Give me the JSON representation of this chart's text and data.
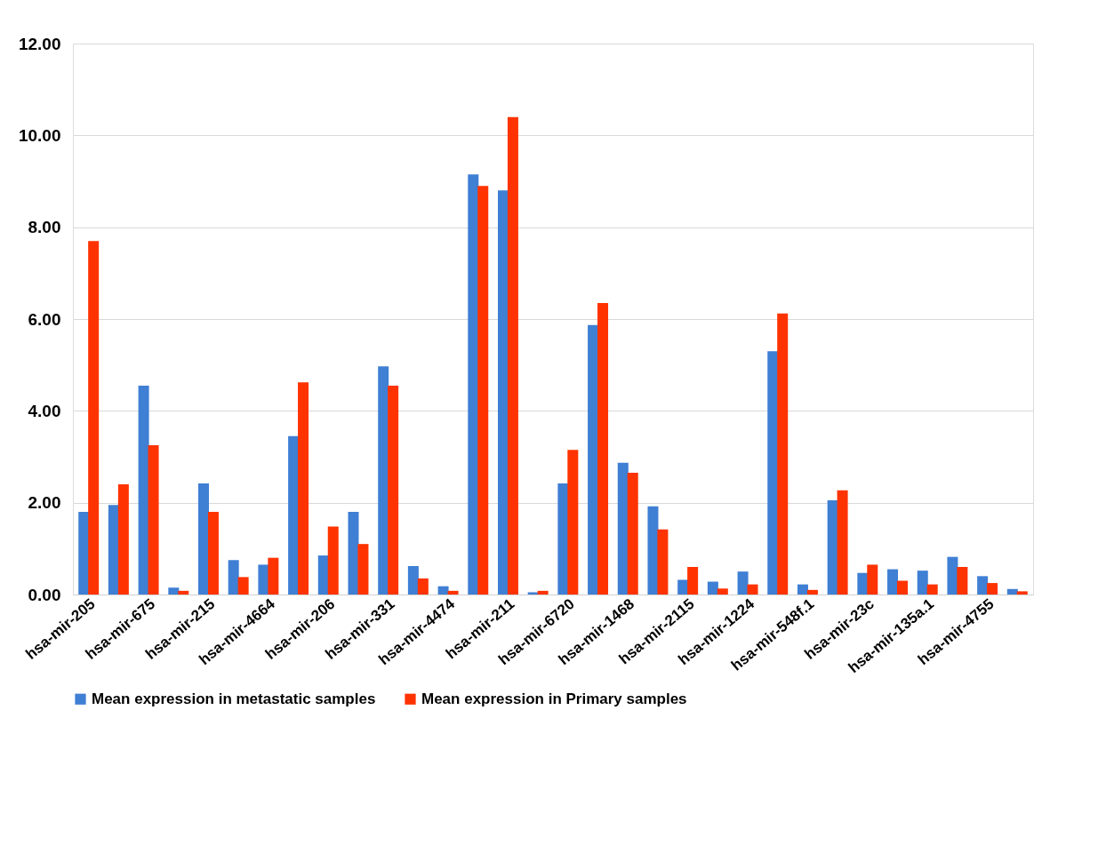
{
  "chart_data": {
    "type": "bar",
    "categories": [
      "hsa-mir-205",
      null,
      "hsa-mir-675",
      null,
      "hsa-mir-215",
      null,
      "hsa-mir-4664",
      null,
      "hsa-mir-206",
      null,
      "hsa-mir-331",
      null,
      "hsa-mir-4474",
      null,
      "hsa-mir-211",
      null,
      "hsa-mir-6720",
      null,
      "hsa-mir-1468",
      null,
      "hsa-mir-2115",
      null,
      "hsa-mir-1224",
      null,
      "hsa-mir-548f.1",
      null,
      "hsa-mir-23c",
      null,
      "hsa-mir-135a.1",
      null,
      "hsa-mir-4755",
      null
    ],
    "series": [
      {
        "name": "Mean expression in metastatic samples",
        "color": "#3f7fd4",
        "values": [
          1.8,
          1.95,
          4.55,
          0.15,
          2.42,
          0.75,
          0.65,
          3.45,
          0.85,
          1.8,
          4.97,
          0.62,
          0.18,
          9.15,
          8.8,
          0.05,
          2.42,
          5.87,
          2.87,
          1.92,
          0.32,
          0.28,
          0.5,
          5.3,
          0.22,
          2.05,
          0.47,
          0.55,
          0.52,
          0.82,
          0.4,
          0.12
        ]
      },
      {
        "name": "Mean expression in Primary samples",
        "color": "#ff3300",
        "values": [
          7.7,
          2.4,
          3.25,
          0.08,
          1.8,
          0.38,
          0.8,
          4.62,
          1.48,
          1.1,
          4.55,
          0.35,
          0.08,
          8.9,
          10.4,
          0.08,
          3.15,
          6.35,
          2.65,
          1.42,
          0.6,
          0.13,
          0.22,
          6.12,
          0.1,
          2.27,
          0.65,
          0.3,
          0.22,
          0.6,
          0.25,
          0.07
        ]
      }
    ],
    "ylim": [
      0,
      12
    ],
    "yticks": [
      {
        "value": 0,
        "label": "0.00"
      },
      {
        "value": 2,
        "label": "2.00"
      },
      {
        "value": 4,
        "label": "4.00"
      },
      {
        "value": 6,
        "label": "6.00"
      },
      {
        "value": 8,
        "label": "8.00"
      },
      {
        "value": 10,
        "label": "10.00"
      },
      {
        "value": 12,
        "label": "12.00"
      }
    ],
    "grid": "y",
    "legend": "bottom"
  }
}
